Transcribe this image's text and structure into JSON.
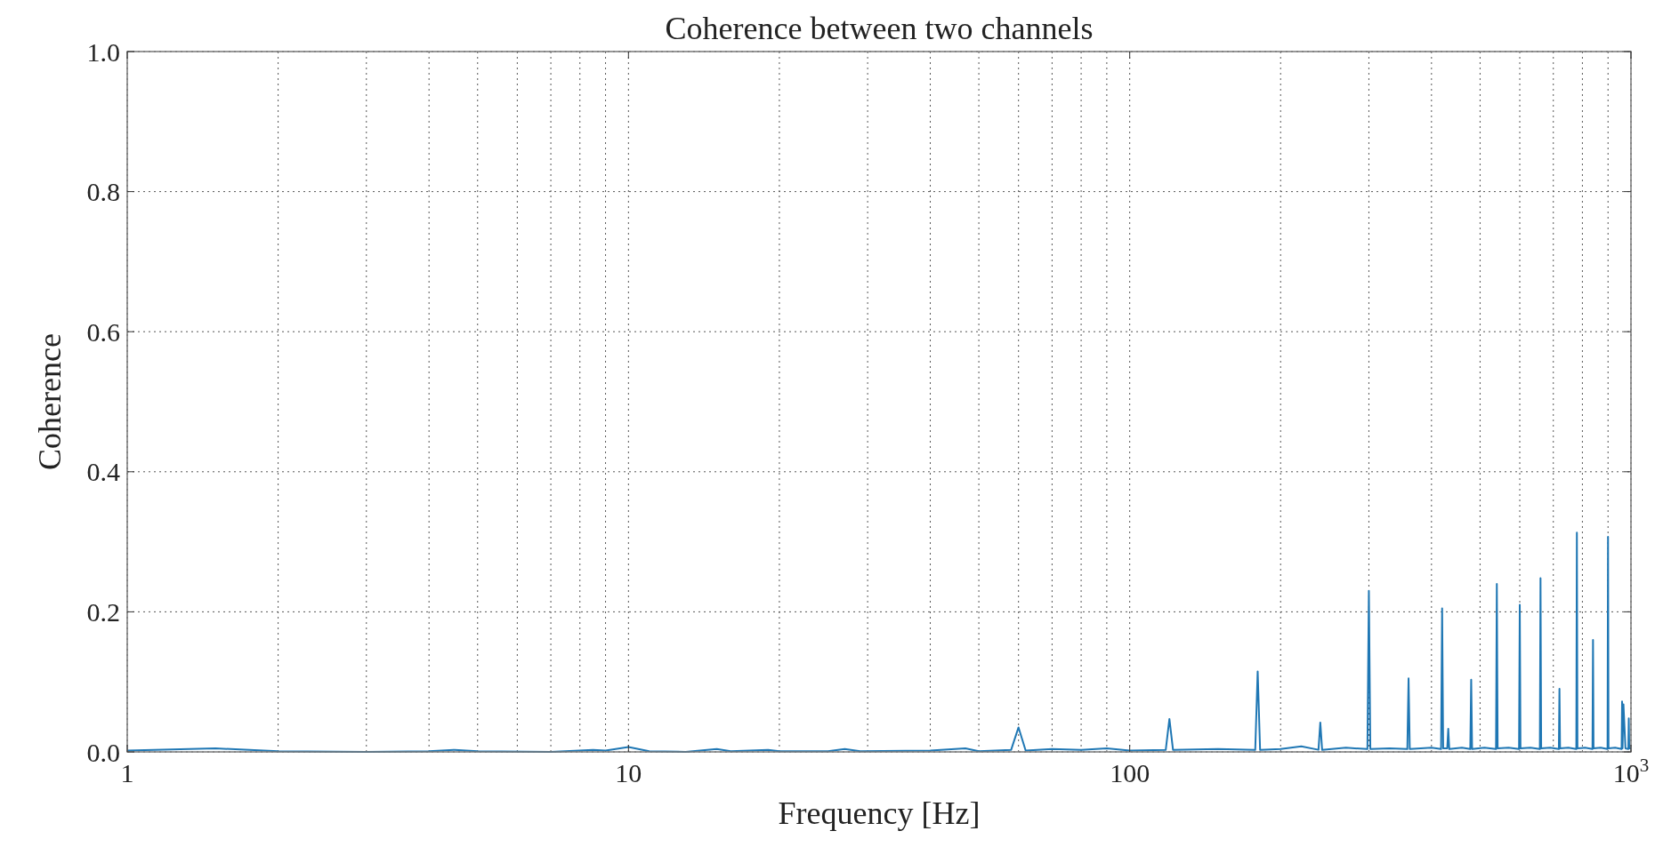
{
  "chart_data": {
    "type": "line",
    "title": "Coherence between two channels",
    "xlabel": "Frequency [Hz]",
    "ylabel": "Coherence",
    "log": "x",
    "grid": true,
    "xlim": [
      1,
      1000
    ],
    "ylim": [
      0,
      1
    ],
    "xticks": [
      1,
      10,
      100,
      {
        "value": 1000,
        "label": "10$^{3}$"
      }
    ],
    "yticks": [
      {
        "value": 0,
        "label": "0.0"
      },
      0.2,
      0.4,
      0.6,
      0.8,
      {
        "value": 1,
        "label": "1.0"
      }
    ],
    "series": [
      {
        "color": "#1f77b4",
        "x": [
          1,
          1.5,
          2,
          3,
          4,
          4.5,
          5,
          7,
          8.5,
          9,
          10,
          11,
          13,
          15,
          16,
          19,
          20,
          25,
          27,
          29,
          40,
          47,
          50,
          58,
          60,
          62,
          70,
          80,
          90,
          100,
          118,
          120,
          122,
          150,
          178,
          180,
          182,
          200,
          220,
          238,
          240,
          242,
          270,
          298,
          300,
          302,
          330,
          358,
          360,
          362,
          400,
          418,
          420,
          422,
          430,
          432,
          434,
          460,
          478,
          480,
          482,
          510,
          538,
          540,
          542,
          570,
          598,
          600,
          602,
          630,
          658,
          660,
          662,
          690,
          718,
          720,
          722,
          750,
          778,
          780,
          782,
          810,
          838,
          840,
          842,
          870,
          898,
          900,
          902,
          930,
          958,
          960,
          962,
          966,
          975,
          988,
          990,
          992,
          1000
        ],
        "values": [
          0.002,
          0.005,
          0.001,
          0.0,
          0.001,
          0.003,
          0.001,
          0.0,
          0.003,
          0.002,
          0.007,
          0.001,
          0.0,
          0.004,
          0.001,
          0.003,
          0.001,
          0.001,
          0.004,
          0.001,
          0.002,
          0.005,
          0.001,
          0.003,
          0.035,
          0.002,
          0.004,
          0.003,
          0.005,
          0.002,
          0.003,
          0.047,
          0.003,
          0.004,
          0.003,
          0.115,
          0.003,
          0.004,
          0.008,
          0.003,
          0.042,
          0.003,
          0.006,
          0.004,
          0.23,
          0.004,
          0.005,
          0.004,
          0.105,
          0.004,
          0.006,
          0.004,
          0.205,
          0.005,
          0.005,
          0.033,
          0.004,
          0.006,
          0.004,
          0.103,
          0.004,
          0.006,
          0.004,
          0.24,
          0.005,
          0.006,
          0.004,
          0.21,
          0.005,
          0.006,
          0.004,
          0.248,
          0.005,
          0.006,
          0.004,
          0.09,
          0.005,
          0.006,
          0.004,
          0.313,
          0.005,
          0.006,
          0.004,
          0.16,
          0.005,
          0.006,
          0.004,
          0.307,
          0.005,
          0.006,
          0.004,
          0.072,
          0.005,
          0.068,
          0.005,
          0.004,
          0.048,
          0.005,
          0.005
        ]
      }
    ]
  }
}
